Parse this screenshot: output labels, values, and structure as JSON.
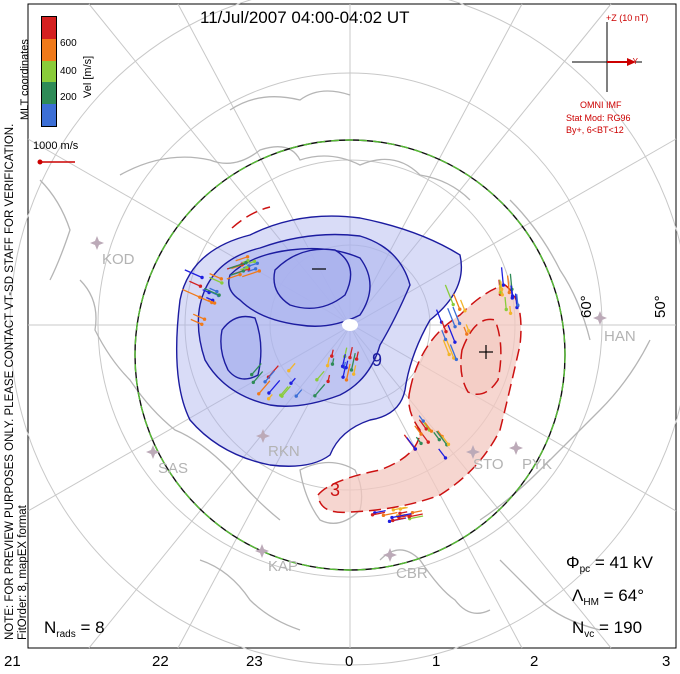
{
  "title": "11/Jul/2007 04:00-04:02 UT",
  "colorbar": {
    "ticks": [
      "600",
      "400",
      "200"
    ],
    "label": "Vel [m/s]",
    "colors": [
      "#d42020",
      "#f07a1a",
      "#f2b52a",
      "#8acc3a",
      "#2e8b57",
      "#3c6fd6",
      "#1f1fe0"
    ]
  },
  "coordinates_label": "MLT coordinates",
  "velocity_scale": "1000 m/s",
  "imf": {
    "z_label": "+Z (10 nT)",
    "y_label": "+Y",
    "source": "OMNI IMF",
    "stat_mod": "Stat Mod: RG96",
    "condition": "By+, 6<BT<12"
  },
  "side_note": {
    "line1": "NOTE: FOR PREVIEW PURPOSES ONLY. PLEASE CONTACT VT-SD STAFF FOR VERIFICATION.",
    "line2": "FitOrder: 8, mapEX format"
  },
  "stats": {
    "phi_symbol": "Φ",
    "phi_sub": "pc",
    "phi_value": "= 41 kV",
    "lambda_symbol": "Λ",
    "lambda_sub": "HM",
    "lambda_value": "= 64°",
    "nvc_symbol": "N",
    "nvc_sub": "vc",
    "nvc_value": "= 190",
    "nrads_symbol": "N",
    "nrads_sub": "rads",
    "nrads_value": "= 8"
  },
  "mlt_labels": [
    "21",
    "22",
    "23",
    "0",
    "1",
    "2",
    "3"
  ],
  "latitude_labels": [
    "60°",
    "50°"
  ],
  "stations": [
    "KOD",
    "SAS",
    "RKN",
    "KAP",
    "CBR",
    "STO",
    "PYK",
    "HAN"
  ],
  "contours": {
    "negative_labels": [
      "–",
      "9"
    ],
    "positive_labels": [
      "+",
      "3"
    ],
    "negative_color": "#1c1ca0",
    "positive_color": "#cc1111",
    "negative_fill": "#aab2ee",
    "positive_fill": "#f3c8c0"
  },
  "boundary_colors": [
    "#55bb33",
    "#111111"
  ]
}
